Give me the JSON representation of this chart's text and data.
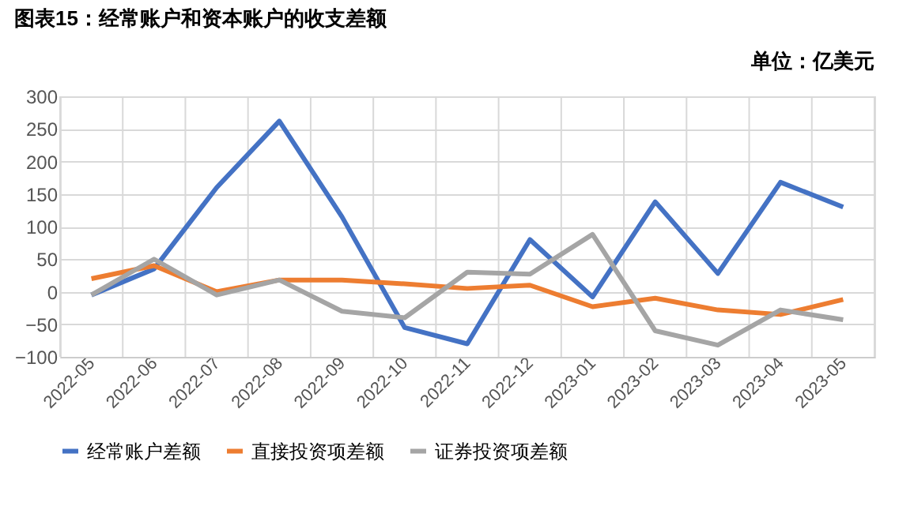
{
  "chart_data": {
    "type": "line",
    "title": "图表15：经常账户和资本账户的收支差额",
    "annotations": [
      "单位：亿美元"
    ],
    "categories": [
      "2022-05",
      "2022-06",
      "2022-07",
      "2022-08",
      "2022-09",
      "2022-10",
      "2022-11",
      "2022-12",
      "2023-01",
      "2023-02",
      "2023-03",
      "2023-04",
      "2023-05"
    ],
    "series": [
      {
        "name": "经常账户差额",
        "color": "#4472c4",
        "values": [
          -5,
          35,
          160,
          262,
          115,
          -55,
          -80,
          80,
          -8,
          138,
          28,
          168,
          130
        ]
      },
      {
        "name": "直接投资项差额",
        "color": "#ed7d31",
        "values": [
          20,
          40,
          0,
          18,
          18,
          12,
          5,
          10,
          -23,
          -10,
          -28,
          -35,
          -12
        ]
      },
      {
        "name": "证券投资项差额",
        "color": "#a5a5a5",
        "values": [
          -5,
          50,
          -5,
          18,
          -30,
          -40,
          30,
          27,
          88,
          -60,
          -82,
          -28,
          -43
        ]
      }
    ],
    "ylim": [
      -100,
      300
    ],
    "yticks": [
      -100,
      -50,
      0,
      50,
      100,
      150,
      200,
      250,
      300
    ],
    "grid": true,
    "legend": "bottom",
    "marker": "none",
    "line_style": "solid"
  }
}
